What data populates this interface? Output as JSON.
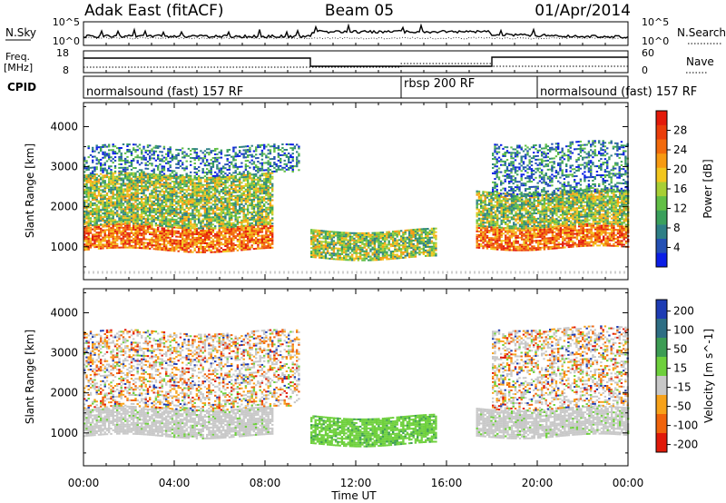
{
  "header": {
    "station": "Adak East (fitACF)",
    "beam": "Beam 05",
    "date": "01/Apr/2014"
  },
  "noise_panel": {
    "left_label": "N.Sky",
    "right_label": "N.Search",
    "left_ticks": [
      "10^5",
      "10^0"
    ],
    "right_ticks": [
      "10^5",
      "10^0"
    ]
  },
  "freq_panel": {
    "left_label": "Freq.",
    "left_unit": "[MHz]",
    "left_ticks": [
      "18",
      "8"
    ],
    "right_label": "Nave",
    "right_ticks": [
      "60",
      "0"
    ]
  },
  "cpid": {
    "label": "CPID",
    "segments": [
      {
        "text": "normalsound (fast) 157 RF",
        "start_hour": 0,
        "end_hour": 14
      },
      {
        "text": "rbsp 200 RF",
        "start_hour": 14,
        "end_hour": 20
      },
      {
        "text": "normalsound (fast) 157 RF",
        "start_hour": 20,
        "end_hour": 24
      }
    ]
  },
  "time_axis": {
    "title": "Time UT",
    "ticks": [
      "00:00",
      "04:00",
      "08:00",
      "12:00",
      "16:00",
      "20:00",
      "00:00"
    ]
  },
  "range_axis": {
    "title": "Slant Range [km]",
    "ticks": [
      "1000",
      "2000",
      "3000",
      "4000"
    ]
  },
  "chart_data": [
    {
      "type": "heatmap",
      "panel": "power",
      "ylabel": "Slant Range [km]",
      "xlabel": "Time UT",
      "xlim_hours": [
        0,
        24
      ],
      "ylim_km": [
        180,
        4600
      ],
      "colorbar": {
        "title": "Power [dB]",
        "ticks": [
          "4",
          "8",
          "12",
          "16",
          "20",
          "24",
          "28"
        ],
        "colors": [
          "#0b1ee6",
          "#2450b4",
          "#2e7f86",
          "#3aa05c",
          "#62bf46",
          "#a8cf35",
          "#f2c61e",
          "#f79a12",
          "#f26a0c",
          "#ea3d0a",
          "#e31a0a"
        ]
      },
      "echo_regions": [
        {
          "t_start": 0.0,
          "t_end": 8.3,
          "r_low": 900,
          "r_high": 1500,
          "level": "high"
        },
        {
          "t_start": 0.0,
          "t_end": 8.3,
          "r_low": 1500,
          "r_high": 2800,
          "level": "medium"
        },
        {
          "t_start": 0.0,
          "t_end": 9.5,
          "r_low": 2800,
          "r_high": 3500,
          "level": "low"
        },
        {
          "t_start": 10.0,
          "t_end": 15.5,
          "r_low": 700,
          "r_high": 1400,
          "level": "medium"
        },
        {
          "t_start": 17.3,
          "t_end": 24.0,
          "r_low": 950,
          "r_high": 1500,
          "level": "high"
        },
        {
          "t_start": 17.3,
          "t_end": 24.0,
          "r_low": 1500,
          "r_high": 2400,
          "level": "medium"
        },
        {
          "t_start": 18.0,
          "t_end": 24.0,
          "r_low": 2300,
          "r_high": 3600,
          "level": "low"
        }
      ]
    },
    {
      "type": "heatmap",
      "panel": "velocity",
      "ylabel": "Slant Range [km]",
      "xlabel": "Time UT",
      "xlim_hours": [
        0,
        24
      ],
      "ylim_km": [
        180,
        4600
      ],
      "colorbar": {
        "title": "Velocity [m s^-1]",
        "ticks": [
          "200",
          "100",
          "50",
          "15",
          "-15",
          "-50",
          "-100",
          "-200"
        ],
        "colors": [
          "#1e3cb4",
          "#2e6e84",
          "#3c9c54",
          "#6ed03c",
          "#c8c8c8",
          "#f7a21a",
          "#f0640c",
          "#e01a0a"
        ]
      },
      "echo_regions": [
        {
          "t_start": 0.0,
          "t_end": 8.3,
          "r_low": 900,
          "r_high": 1600,
          "level": "ground"
        },
        {
          "t_start": 0.0,
          "t_end": 9.5,
          "r_low": 1600,
          "r_high": 3500,
          "level": "mixed"
        },
        {
          "t_start": 10.0,
          "t_end": 15.5,
          "r_low": 700,
          "r_high": 1400,
          "level": "positive"
        },
        {
          "t_start": 17.3,
          "t_end": 24.0,
          "r_low": 900,
          "r_high": 1600,
          "level": "ground"
        },
        {
          "t_start": 18.0,
          "t_end": 24.0,
          "r_low": 1600,
          "r_high": 3600,
          "level": "mixed"
        }
      ]
    }
  ]
}
